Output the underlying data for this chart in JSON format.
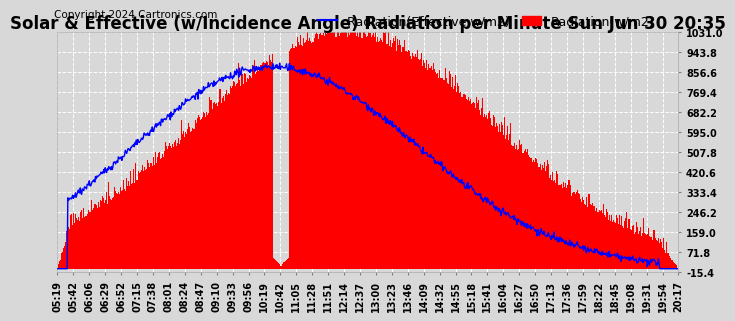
{
  "title": "Solar & Effective (w/Incidence Angle) Radiation per Minute Sun Jun 30 20:35",
  "copyright": "Copyright 2024 Cartronics.com",
  "legend_effective": "Radiation(Effective w/m2)",
  "legend_solar": "Radiation(w/m2)",
  "ymin": -15.4,
  "ymax": 1031.0,
  "yticks": [
    -15.4,
    71.8,
    159.0,
    246.2,
    333.4,
    420.6,
    507.8,
    595.0,
    682.2,
    769.4,
    856.6,
    943.8,
    1031.0
  ],
  "xtick_labels": [
    "05:19",
    "05:42",
    "06:06",
    "06:29",
    "06:52",
    "07:15",
    "07:38",
    "08:01",
    "08:24",
    "08:47",
    "09:10",
    "09:33",
    "09:56",
    "10:19",
    "10:42",
    "11:05",
    "11:28",
    "11:51",
    "12:14",
    "12:37",
    "13:00",
    "13:23",
    "13:46",
    "14:09",
    "14:32",
    "14:55",
    "15:18",
    "15:41",
    "16:04",
    "16:27",
    "16:50",
    "17:13",
    "17:36",
    "17:59",
    "18:22",
    "18:45",
    "19:08",
    "19:31",
    "19:54",
    "20:17"
  ],
  "background_color": "#d8d8d8",
  "plot_bg_color": "#d8d8d8",
  "bar_color": "#ff0000",
  "line_color": "#0000ff",
  "grid_color": "#ffffff",
  "title_fontsize": 12,
  "copyright_fontsize": 7.5,
  "legend_fontsize": 9,
  "tick_fontsize": 7
}
